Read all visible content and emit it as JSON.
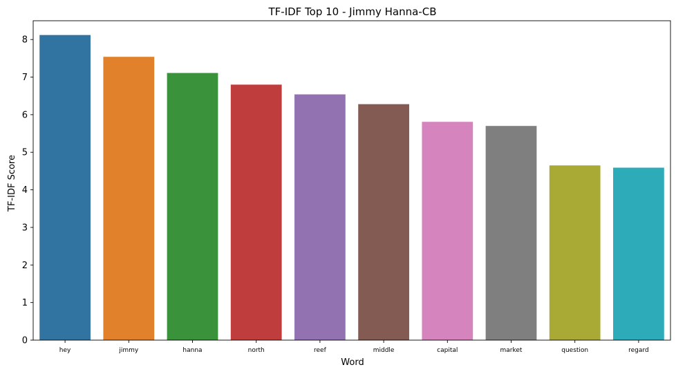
{
  "chart_data": {
    "type": "bar",
    "title": "TF-IDF Top 10 - Jimmy Hanna-CB",
    "xlabel": "Word",
    "ylabel": "TF-IDF Score",
    "categories": [
      "hey",
      "jimmy",
      "hanna",
      "north",
      "reef",
      "middle",
      "capital",
      "market",
      "question",
      "regard"
    ],
    "values": [
      8.12,
      7.54,
      7.11,
      6.8,
      6.54,
      6.28,
      5.81,
      5.7,
      4.65,
      4.59
    ],
    "colors": [
      "#3274a1",
      "#e1812c",
      "#3a923a",
      "#c03d3e",
      "#9372b2",
      "#845b53",
      "#d684bd",
      "#7f7f7f",
      "#a9aa35",
      "#2eabb8"
    ],
    "ylim": [
      0,
      8.5
    ],
    "yticks": [
      0,
      1,
      2,
      3,
      4,
      5,
      6,
      7,
      8
    ],
    "grid": false,
    "legend": "none"
  }
}
